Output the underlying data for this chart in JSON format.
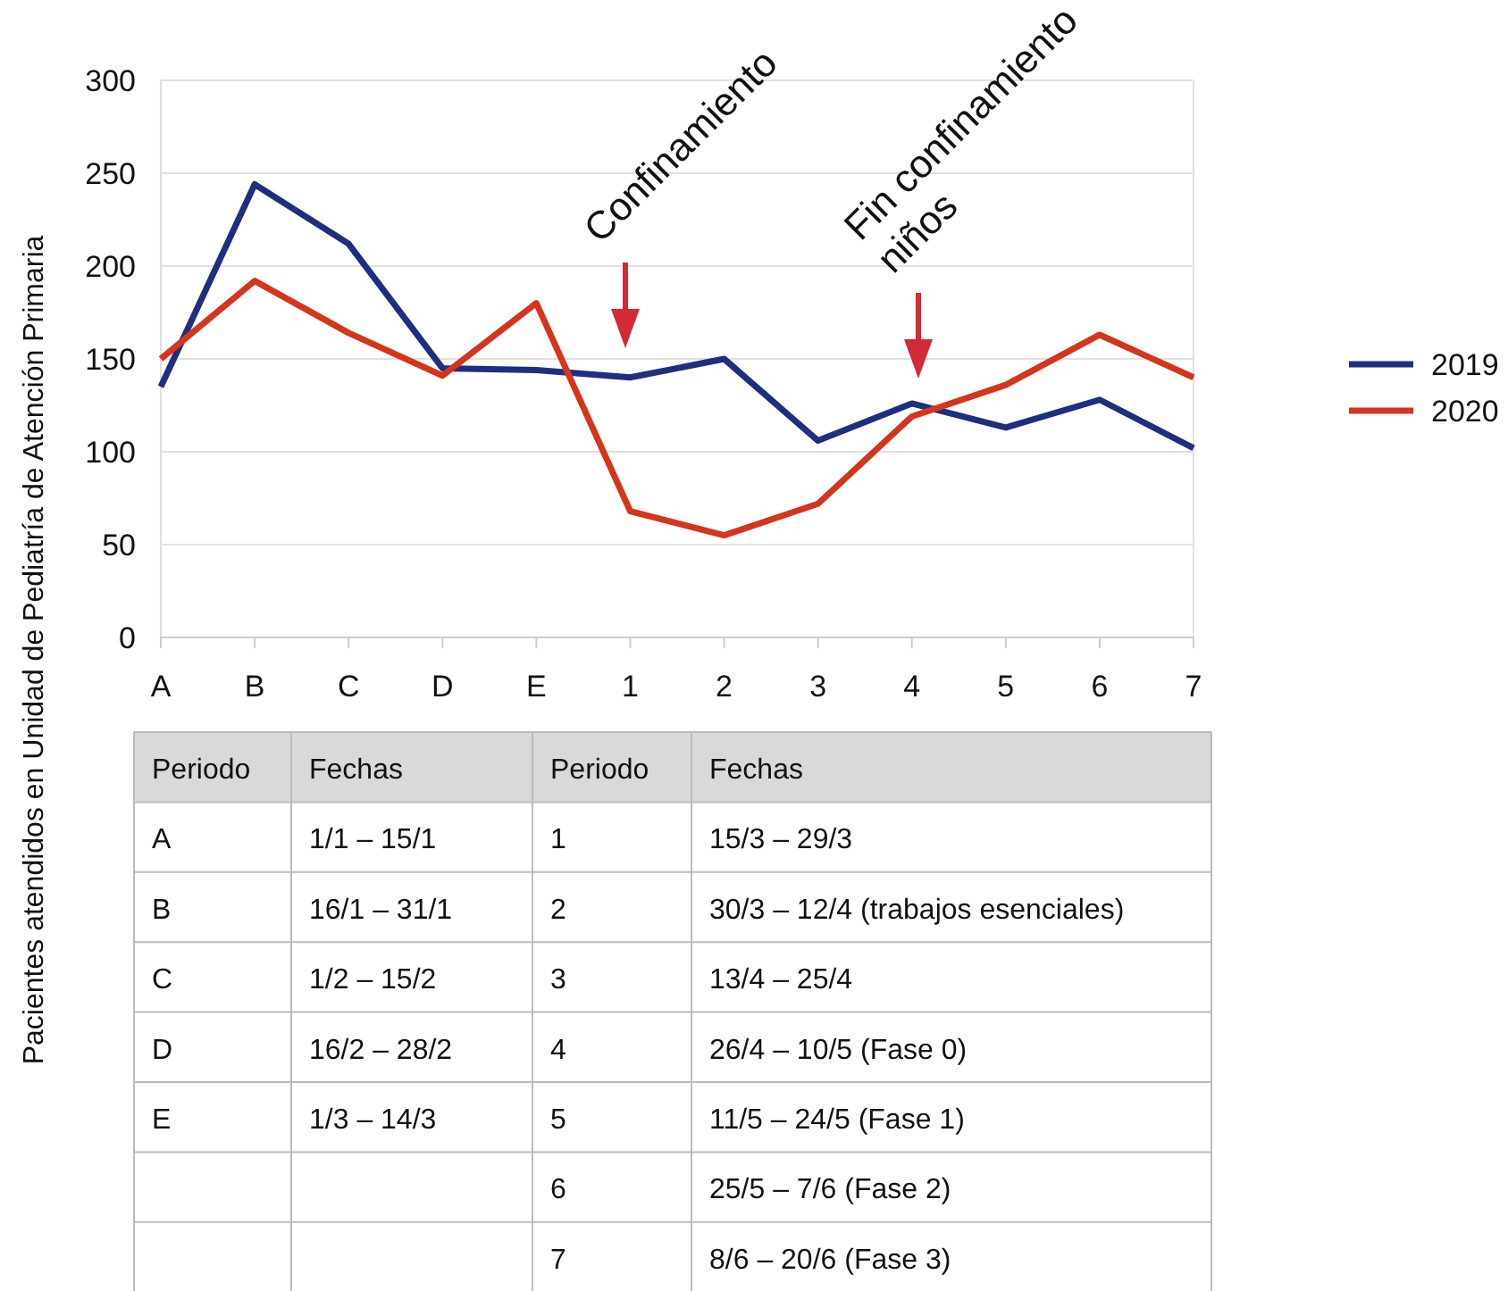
{
  "chart_data": {
    "type": "line",
    "ylabel": "Pacientes atendidos en Unidad de Pediatría de Atención Primaria",
    "categories": [
      "A",
      "B",
      "C",
      "D",
      "E",
      "1",
      "2",
      "3",
      "4",
      "5",
      "6",
      "7"
    ],
    "series": [
      {
        "name": "2019",
        "color": "#1f2f7e",
        "values": [
          135,
          244,
          212,
          145,
          144,
          140,
          150,
          106,
          126,
          113,
          128,
          102
        ]
      },
      {
        "name": "2020",
        "color": "#d4351c",
        "values": [
          150,
          192,
          164,
          141,
          180,
          68,
          55,
          72,
          119,
          136,
          163,
          140
        ]
      }
    ],
    "ylim": [
      0,
      300
    ],
    "yticks": [
      0,
      50,
      100,
      150,
      200,
      250,
      300
    ],
    "grid": "y",
    "legend": "right",
    "marker": "none",
    "line_style": "solid",
    "annotations": [
      "Confinamiento",
      "Fin confinamiento\nniños",
      "Periodo",
      "Fechas",
      "Periodo",
      "Fechas",
      "A",
      "1/1 – 15/1",
      "1",
      "15/3 – 29/3",
      "B",
      "16/1 – 31/1",
      "2",
      "30/3 – 12/4 (trabajos esenciales)",
      "C",
      "1/2 – 15/2",
      "3",
      "13/4 – 25/4",
      "D",
      "16/2 – 28/2",
      "4",
      "26/4 – 10/5 (Fase 0)",
      "E",
      "1/3 – 14/3",
      "5",
      "11/5 – 24/5 (Fase 1)",
      "6",
      "25/5 – 7/6 (Fase 2)",
      "7",
      "8/6 – 20/6 (Fase 3)"
    ]
  }
}
